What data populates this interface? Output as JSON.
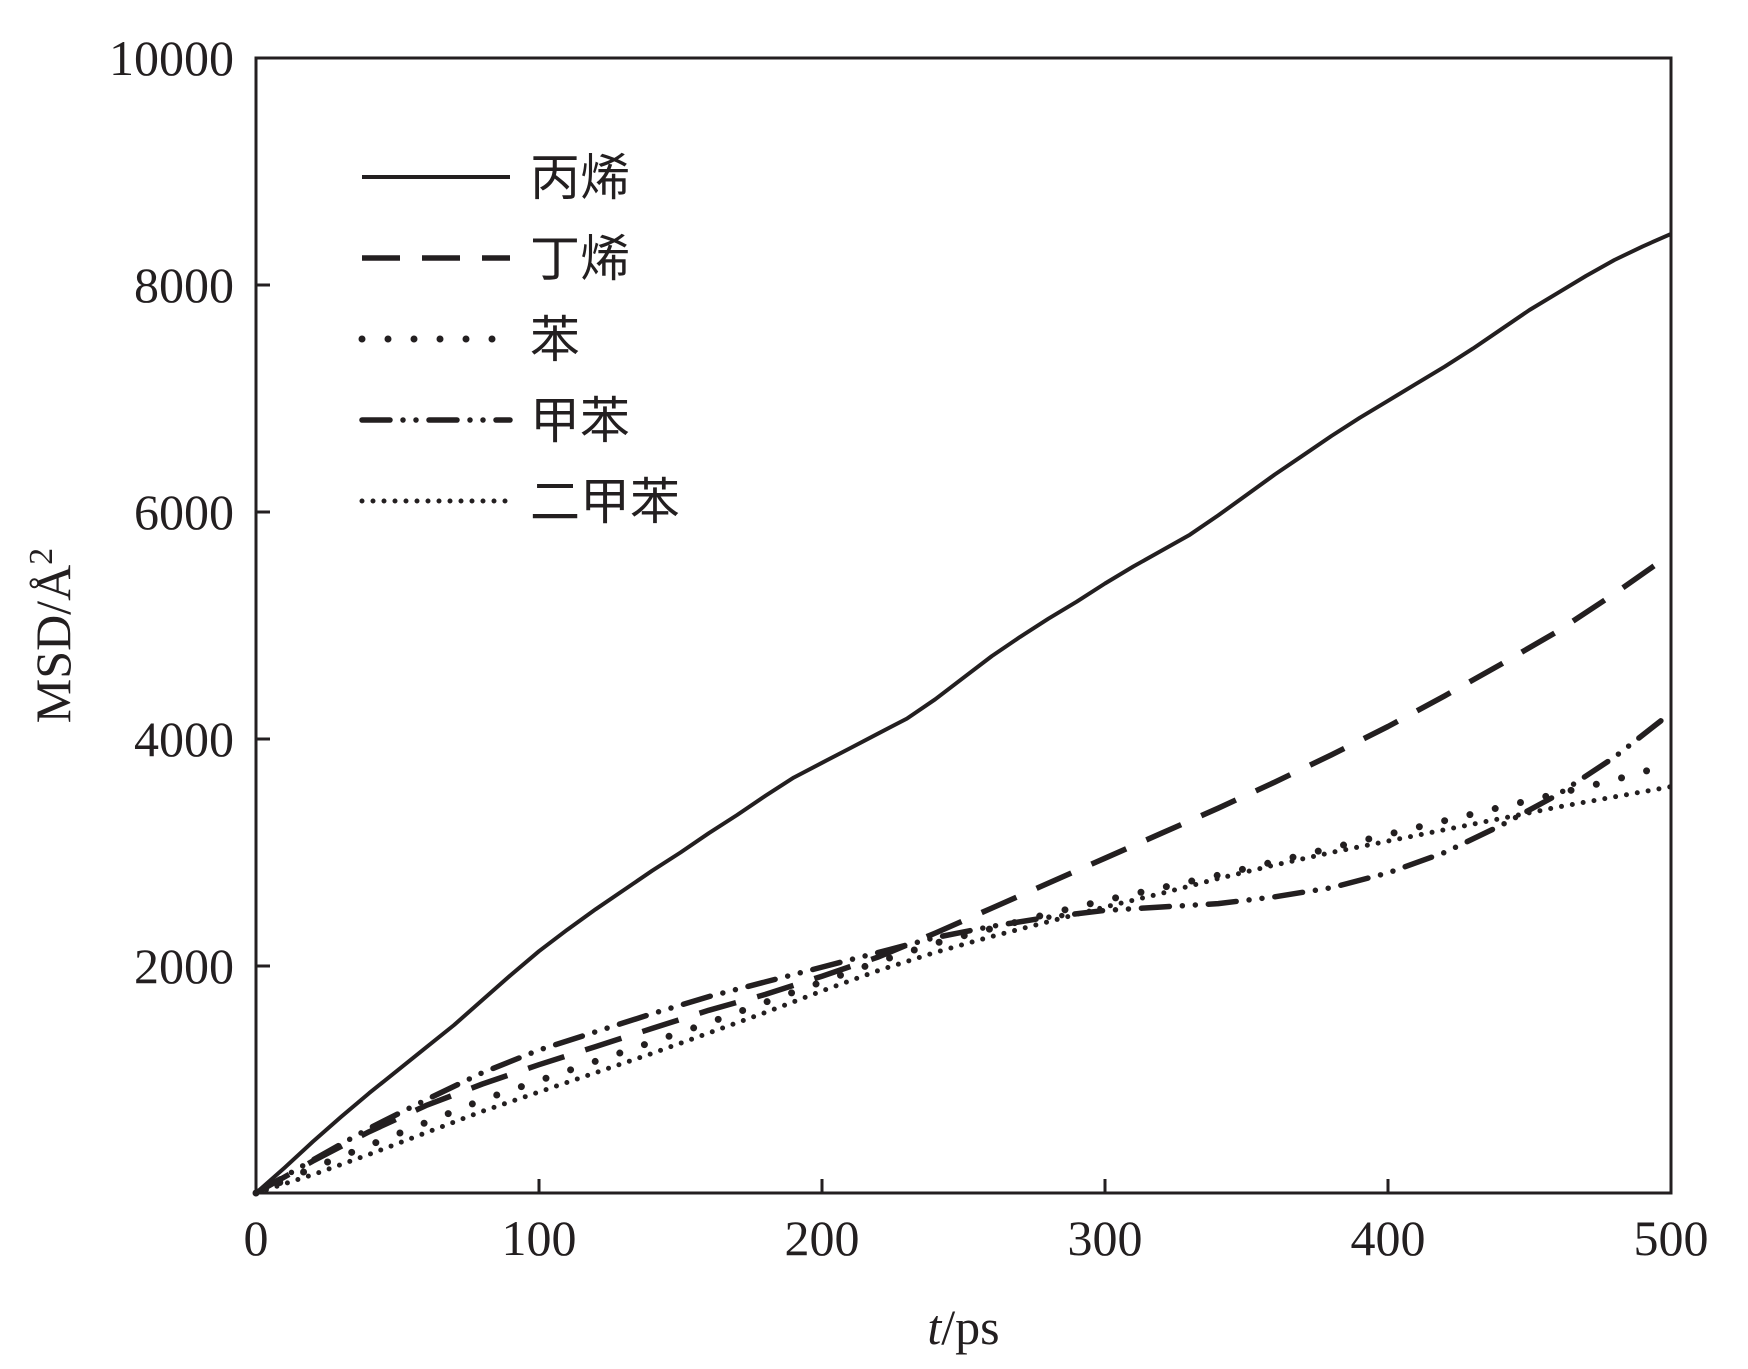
{
  "chart_data": {
    "type": "line",
    "xlabel_italic": "t",
    "xlabel_rest": "/ps",
    "ylabel_main": "MSD/Å",
    "ylabel_sup": "2",
    "xlim": [
      0,
      500
    ],
    "ylim": [
      0,
      10000
    ],
    "x_ticks": [
      0,
      100,
      200,
      300,
      400,
      500
    ],
    "x_tick_labels": [
      "0",
      "100",
      "200",
      "300",
      "400",
      "500"
    ],
    "y_ticks": [
      2000,
      4000,
      6000,
      8000,
      10000
    ],
    "y_tick_labels": [
      "2000",
      "4000",
      "6000",
      "8000",
      "10000"
    ],
    "grid": false,
    "legend_position": "top-left",
    "line_color": "#231f20",
    "series": [
      {
        "name": "丙烯",
        "style": "solid",
        "x": [
          0,
          10,
          20,
          30,
          40,
          50,
          60,
          70,
          80,
          90,
          100,
          110,
          120,
          130,
          140,
          150,
          160,
          170,
          180,
          190,
          200,
          210,
          220,
          230,
          240,
          250,
          260,
          270,
          280,
          290,
          300,
          310,
          320,
          330,
          340,
          350,
          360,
          370,
          380,
          390,
          400,
          410,
          420,
          430,
          440,
          450,
          460,
          470,
          480,
          490,
          500
        ],
        "y": [
          0,
          220,
          450,
          670,
          880,
          1080,
          1280,
          1480,
          1700,
          1920,
          2130,
          2320,
          2500,
          2670,
          2840,
          3000,
          3170,
          3330,
          3500,
          3660,
          3790,
          3920,
          4050,
          4180,
          4350,
          4540,
          4730,
          4900,
          5060,
          5210,
          5370,
          5520,
          5660,
          5800,
          5970,
          6150,
          6330,
          6500,
          6670,
          6830,
          6980,
          7130,
          7280,
          7440,
          7610,
          7780,
          7930,
          8080,
          8220,
          8340,
          8450
        ]
      },
      {
        "name": "丁烯",
        "style": "dashed",
        "x": [
          0,
          20,
          40,
          60,
          80,
          100,
          120,
          140,
          160,
          180,
          200,
          220,
          240,
          260,
          280,
          300,
          320,
          340,
          360,
          380,
          400,
          420,
          440,
          460,
          480,
          500
        ],
        "y": [
          0,
          280,
          540,
          770,
          960,
          1130,
          1290,
          1450,
          1610,
          1750,
          1910,
          2080,
          2290,
          2510,
          2730,
          2950,
          3170,
          3390,
          3620,
          3860,
          4110,
          4380,
          4660,
          4950,
          5280,
          5630
        ]
      },
      {
        "name": "苯",
        "style": "dotted",
        "x": [
          0,
          20,
          40,
          60,
          80,
          100,
          120,
          140,
          160,
          180,
          200,
          220,
          240,
          260,
          280,
          300,
          320,
          340,
          360,
          380,
          400,
          420,
          440,
          460,
          480,
          500
        ],
        "y": [
          0,
          220,
          420,
          620,
          820,
          990,
          1160,
          1330,
          1500,
          1680,
          1860,
          2040,
          2200,
          2330,
          2460,
          2580,
          2690,
          2800,
          2920,
          3040,
          3160,
          3280,
          3400,
          3520,
          3640,
          3780
        ]
      },
      {
        "name": "甲苯",
        "style": "dash-dot-dot",
        "x": [
          0,
          20,
          40,
          60,
          80,
          100,
          120,
          140,
          160,
          180,
          200,
          220,
          240,
          260,
          280,
          300,
          320,
          340,
          360,
          380,
          400,
          420,
          440,
          460,
          480,
          500
        ],
        "y": [
          0,
          290,
          570,
          820,
          1060,
          1260,
          1420,
          1580,
          1730,
          1860,
          1990,
          2120,
          2250,
          2350,
          2430,
          2490,
          2520,
          2550,
          2610,
          2690,
          2820,
          3000,
          3240,
          3510,
          3840,
          4230
        ]
      },
      {
        "name": "二甲苯",
        "style": "fine-dotted",
        "x": [
          0,
          20,
          40,
          60,
          80,
          100,
          120,
          140,
          160,
          180,
          200,
          220,
          240,
          260,
          280,
          300,
          320,
          340,
          360,
          380,
          400,
          420,
          440,
          460,
          480,
          500
        ],
        "y": [
          0,
          160,
          340,
          530,
          720,
          890,
          1060,
          1230,
          1410,
          1590,
          1780,
          1960,
          2120,
          2260,
          2390,
          2520,
          2640,
          2770,
          2890,
          3000,
          3100,
          3200,
          3300,
          3400,
          3490,
          3580
        ]
      }
    ]
  }
}
